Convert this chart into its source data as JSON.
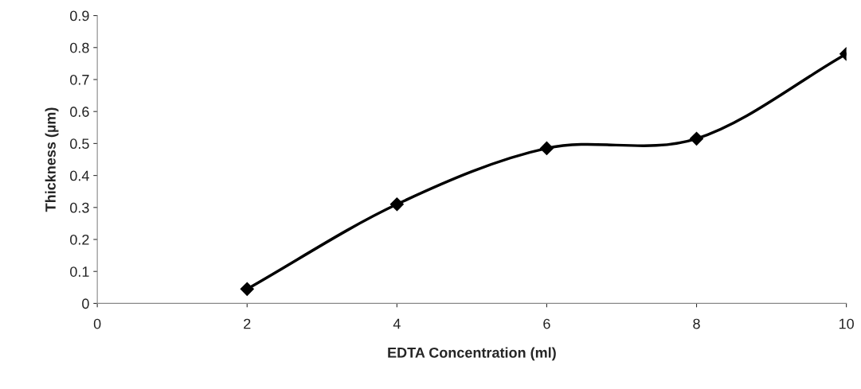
{
  "chart_data": {
    "type": "line",
    "xlabel": "EDTA Concentration (ml)",
    "ylabel": "Thickness (µm)",
    "x": [
      2,
      4,
      6,
      8,
      10
    ],
    "series": [
      {
        "color": "#000000",
        "values": [
          0.045,
          0.31,
          0.485,
          0.515,
          0.78
        ]
      }
    ],
    "xlim": [
      0,
      10
    ],
    "xticks": [
      0,
      2,
      4,
      6,
      8,
      10
    ],
    "ylim": [
      0,
      0.9
    ],
    "yticks": [
      0,
      0.1,
      0.2,
      0.3,
      0.4,
      0.5,
      0.6,
      0.7,
      0.8,
      0.9
    ],
    "marker": "diamond",
    "line_style": "solid",
    "grid": false
  }
}
